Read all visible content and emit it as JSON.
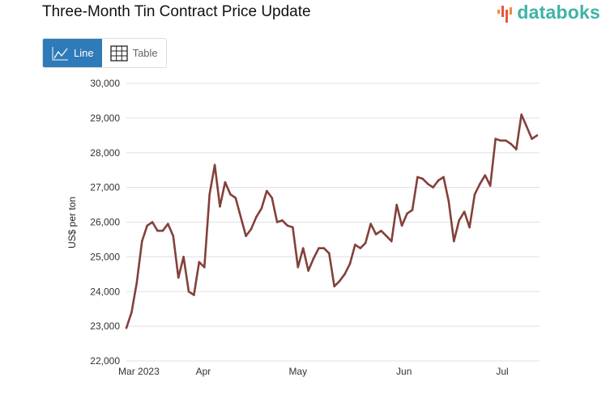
{
  "title": "Three-Month Tin Contract Price Update",
  "logo": "databoks",
  "toggle": {
    "line_label": "Line",
    "table_label": "Table",
    "active": "Line"
  },
  "colors": {
    "line": "#84403a",
    "accent": "#2f7ab8",
    "grid": "#e0e0e0"
  },
  "chart_data": {
    "type": "line",
    "title": "Three-Month Tin Contract Price Update",
    "xlabel": "",
    "ylabel": "US$ per ton",
    "ylim": [
      22000,
      30000
    ],
    "yticks": [
      22000,
      23000,
      24000,
      25000,
      26000,
      27000,
      28000,
      29000,
      30000
    ],
    "ytick_labels": [
      "22,000",
      "23,000",
      "24,000",
      "25,000",
      "26,000",
      "27,000",
      "28,000",
      "29,000",
      "30,000"
    ],
    "xticks": [
      {
        "label": "Mar 2023",
        "index": 2.4
      },
      {
        "label": "Apr",
        "index": 14.8
      },
      {
        "label": "May",
        "index": 33
      },
      {
        "label": "Jun",
        "index": 53.4
      },
      {
        "label": "Jul",
        "index": 72.3
      }
    ],
    "grid": true,
    "series": [
      {
        "name": "Three-Month Tin Contract",
        "values": [
          22950,
          23400,
          24250,
          25450,
          25900,
          26000,
          25750,
          25750,
          25950,
          25600,
          24400,
          25000,
          24000,
          23900,
          24850,
          24700,
          26800,
          27650,
          26450,
          27150,
          26800,
          26700,
          26150,
          25600,
          25800,
          26150,
          26400,
          26900,
          26700,
          26000,
          26050,
          25900,
          25850,
          24700,
          25250,
          24600,
          24950,
          25250,
          25250,
          25100,
          24150,
          24300,
          24500,
          24800,
          25350,
          25250,
          25400,
          25950,
          25650,
          25750,
          25600,
          25450,
          26500,
          25900,
          26250,
          26350,
          27300,
          27250,
          27100,
          27000,
          27200,
          27300,
          26600,
          25450,
          26050,
          26300,
          25850,
          26800,
          27100,
          27350,
          27050,
          28400,
          28350,
          28350,
          28250,
          28100,
          29100,
          28750,
          28400,
          28500
        ]
      }
    ]
  }
}
